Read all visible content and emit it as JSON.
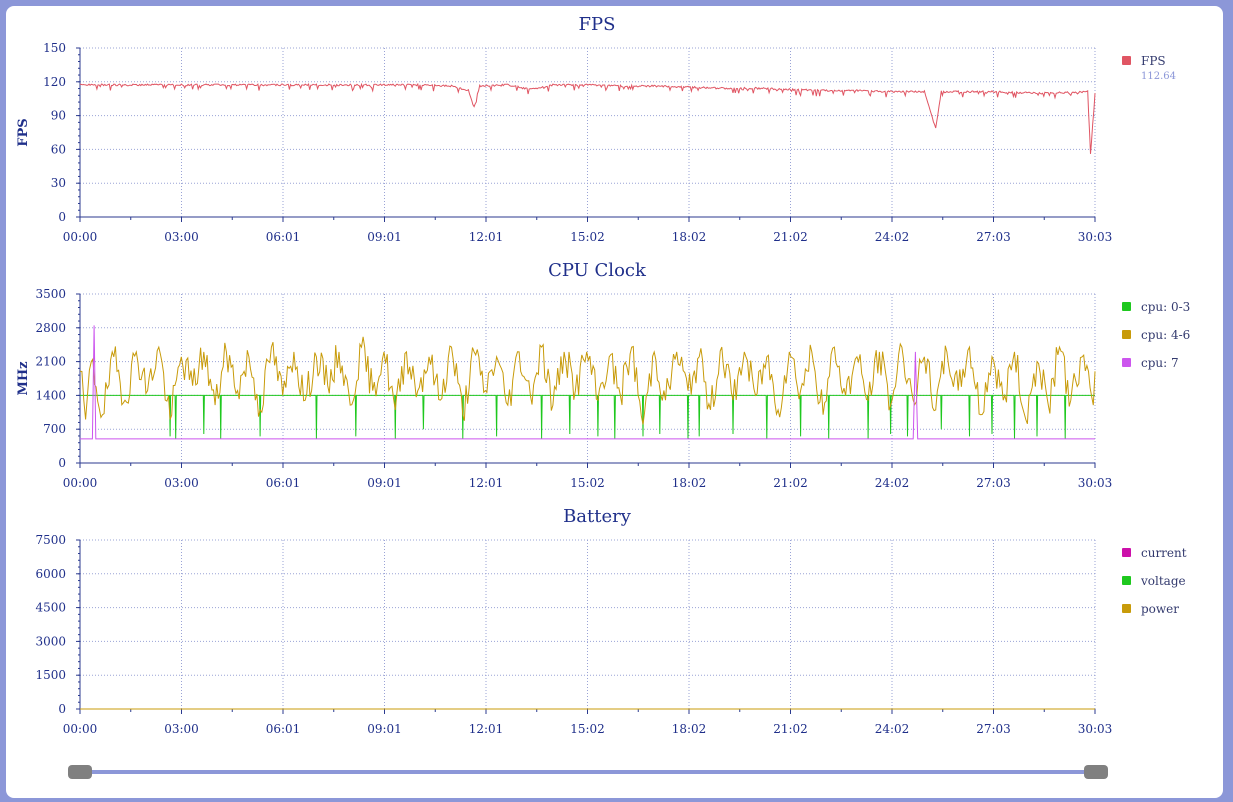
{
  "colors": {
    "axis": "#2b3a8f",
    "grid": "#9aa3d6",
    "background": "#8c97d8"
  },
  "chart_data": [
    {
      "type": "line",
      "title": "FPS",
      "ylabel": "FPS",
      "xlabel": "",
      "ylim": [
        0,
        150
      ],
      "yticks": [
        0,
        30,
        60,
        90,
        120,
        150
      ],
      "xticks": [
        "00:00",
        "03:00",
        "06:01",
        "09:01",
        "12:01",
        "15:02",
        "18:02",
        "21:02",
        "24:02",
        "27:03",
        "30:03"
      ],
      "duration_s": 1803,
      "grid": true,
      "legend_position": "right",
      "series": [
        {
          "name": "FPS",
          "color": "#e05563",
          "legend_value": "112.64",
          "points": [
            [
              0,
              118
            ],
            [
              60,
              118
            ],
            [
              120,
              118
            ],
            [
              180,
              118
            ],
            [
              240,
              118
            ],
            [
              300,
              118
            ],
            [
              360,
              118
            ],
            [
              420,
              118
            ],
            [
              480,
              118
            ],
            [
              540,
              118
            ],
            [
              600,
              118
            ],
            [
              660,
              117
            ],
            [
              690,
              113
            ],
            [
              700,
              98
            ],
            [
              710,
              117
            ],
            [
              760,
              118
            ],
            [
              800,
              114
            ],
            [
              840,
              118
            ],
            [
              900,
              118
            ],
            [
              960,
              117
            ],
            [
              1020,
              117
            ],
            [
              1080,
              116
            ],
            [
              1140,
              115
            ],
            [
              1200,
              115
            ],
            [
              1260,
              114
            ],
            [
              1320,
              113
            ],
            [
              1380,
              113
            ],
            [
              1440,
              112
            ],
            [
              1500,
              112
            ],
            [
              1520,
              79
            ],
            [
              1530,
              112
            ],
            [
              1560,
              112
            ],
            [
              1620,
              112
            ],
            [
              1680,
              111
            ],
            [
              1740,
              111
            ],
            [
              1790,
              112
            ],
            [
              1795,
              56
            ],
            [
              1803,
              110
            ]
          ]
        }
      ]
    },
    {
      "type": "line",
      "title": "CPU Clock",
      "ylabel": "MHz",
      "xlabel": "",
      "ylim": [
        0,
        3500
      ],
      "yticks": [
        0,
        700,
        1400,
        2100,
        2800,
        3500
      ],
      "xticks": [
        "00:00",
        "03:00",
        "06:01",
        "09:01",
        "12:01",
        "15:02",
        "18:02",
        "21:02",
        "24:02",
        "27:03",
        "30:03"
      ],
      "duration_s": 1803,
      "grid": true,
      "legend_position": "right",
      "series": [
        {
          "name": "cpu: 0-3",
          "color": "#1ec81e",
          "baseline": 1400,
          "dips": [
            [
              160,
              550
            ],
            [
              170,
              500
            ],
            [
              220,
              600
            ],
            [
              250,
              500
            ],
            [
              320,
              550
            ],
            [
              420,
              500
            ],
            [
              490,
              550
            ],
            [
              560,
              500
            ],
            [
              610,
              700
            ],
            [
              680,
              500
            ],
            [
              740,
              550
            ],
            [
              820,
              500
            ],
            [
              870,
              600
            ],
            [
              920,
              550
            ],
            [
              950,
              500
            ],
            [
              1000,
              550
            ],
            [
              1030,
              600
            ],
            [
              1080,
              500
            ],
            [
              1100,
              550
            ],
            [
              1160,
              600
            ],
            [
              1220,
              500
            ],
            [
              1280,
              550
            ],
            [
              1330,
              500
            ],
            [
              1400,
              500
            ],
            [
              1440,
              600
            ],
            [
              1470,
              550
            ],
            [
              1530,
              700
            ],
            [
              1580,
              550
            ],
            [
              1620,
              600
            ],
            [
              1660,
              500
            ],
            [
              1700,
              550
            ],
            [
              1750,
              500
            ]
          ]
        },
        {
          "name": "cpu: 4-6",
          "color": "#c89b0a",
          "points": [
            [
              0,
              1900
            ],
            [
              10,
              900
            ],
            [
              20,
              2100
            ],
            [
              40,
              1000
            ],
            [
              60,
              2200
            ],
            [
              80,
              1300
            ],
            [
              100,
              2300
            ],
            [
              120,
              1500
            ],
            [
              140,
              2400
            ],
            [
              160,
              900
            ],
            [
              180,
              2200
            ],
            [
              200,
              1600
            ],
            [
              220,
              2300
            ],
            [
              240,
              1200
            ],
            [
              260,
              2300
            ],
            [
              280,
              1500
            ],
            [
              300,
              2200
            ],
            [
              320,
              1100
            ],
            [
              340,
              2400
            ],
            [
              360,
              1400
            ],
            [
              380,
              2300
            ],
            [
              400,
              1300
            ],
            [
              420,
              2200
            ],
            [
              440,
              1600
            ],
            [
              460,
              2300
            ],
            [
              480,
              1200
            ],
            [
              500,
              2400
            ],
            [
              520,
              1500
            ],
            [
              540,
              2300
            ],
            [
              560,
              1100
            ],
            [
              580,
              2300
            ],
            [
              600,
              1500
            ],
            [
              620,
              2200
            ],
            [
              640,
              1300
            ],
            [
              660,
              2400
            ],
            [
              680,
              1000
            ],
            [
              700,
              2300
            ],
            [
              720,
              1500
            ],
            [
              740,
              2200
            ],
            [
              760,
              1200
            ],
            [
              780,
              2300
            ],
            [
              800,
              1400
            ],
            [
              820,
              2400
            ],
            [
              840,
              1200
            ],
            [
              860,
              2300
            ],
            [
              880,
              1500
            ],
            [
              900,
              2300
            ],
            [
              920,
              1300
            ],
            [
              940,
              2200
            ],
            [
              960,
              1400
            ],
            [
              980,
              2400
            ],
            [
              1000,
              800
            ],
            [
              1020,
              2300
            ],
            [
              1040,
              1300
            ],
            [
              1060,
              2300
            ],
            [
              1080,
              1500
            ],
            [
              1100,
              2200
            ],
            [
              1120,
              1100
            ],
            [
              1140,
              2400
            ],
            [
              1160,
              1300
            ],
            [
              1180,
              2300
            ],
            [
              1200,
              1400
            ],
            [
              1220,
              2200
            ],
            [
              1240,
              1100
            ],
            [
              1260,
              2300
            ],
            [
              1280,
              1500
            ],
            [
              1300,
              2300
            ],
            [
              1320,
              1000
            ],
            [
              1340,
              2400
            ],
            [
              1360,
              1400
            ],
            [
              1380,
              2200
            ],
            [
              1400,
              1300
            ],
            [
              1420,
              2300
            ],
            [
              1440,
              1200
            ],
            [
              1460,
              2400
            ],
            [
              1480,
              1300
            ],
            [
              1500,
              2200
            ],
            [
              1520,
              1100
            ],
            [
              1540,
              2300
            ],
            [
              1560,
              1500
            ],
            [
              1580,
              2400
            ],
            [
              1600,
              1000
            ],
            [
              1620,
              2200
            ],
            [
              1640,
              1300
            ],
            [
              1660,
              2300
            ],
            [
              1680,
              900
            ],
            [
              1700,
              2100
            ],
            [
              1720,
              1200
            ],
            [
              1740,
              2400
            ],
            [
              1760,
              1300
            ],
            [
              1780,
              2200
            ],
            [
              1800,
              1200
            ],
            [
              1803,
              1900
            ]
          ]
        },
        {
          "name": "cpu: 7",
          "color": "#cc55ee",
          "points": [
            [
              0,
              500
            ],
            [
              22,
              500
            ],
            [
              25,
              2850
            ],
            [
              28,
              500
            ],
            [
              1480,
              500
            ],
            [
              1484,
              2300
            ],
            [
              1488,
              500
            ],
            [
              1803,
              500
            ]
          ]
        }
      ]
    },
    {
      "type": "line",
      "title": "Battery",
      "ylabel": "",
      "xlabel": "",
      "ylim": [
        0,
        7500
      ],
      "yticks": [
        0,
        1500,
        3000,
        4500,
        6000,
        7500
      ],
      "xticks": [
        "00:00",
        "03:00",
        "06:01",
        "09:01",
        "12:01",
        "15:02",
        "18:02",
        "21:02",
        "24:02",
        "27:03",
        "30:03"
      ],
      "duration_s": 1803,
      "grid": true,
      "legend_position": "right",
      "series": [
        {
          "name": "current",
          "color": "#cc10aa",
          "points": [
            [
              0,
              0
            ],
            [
              1803,
              0
            ]
          ]
        },
        {
          "name": "voltage",
          "color": "#1ec81e",
          "points": [
            [
              0,
              0
            ],
            [
              1803,
              0
            ]
          ]
        },
        {
          "name": "power",
          "color": "#c89b0a",
          "points": [
            [
              0,
              0
            ],
            [
              1803,
              0
            ]
          ]
        }
      ]
    }
  ],
  "slider": {
    "start_fraction": 0,
    "end_fraction": 1
  }
}
